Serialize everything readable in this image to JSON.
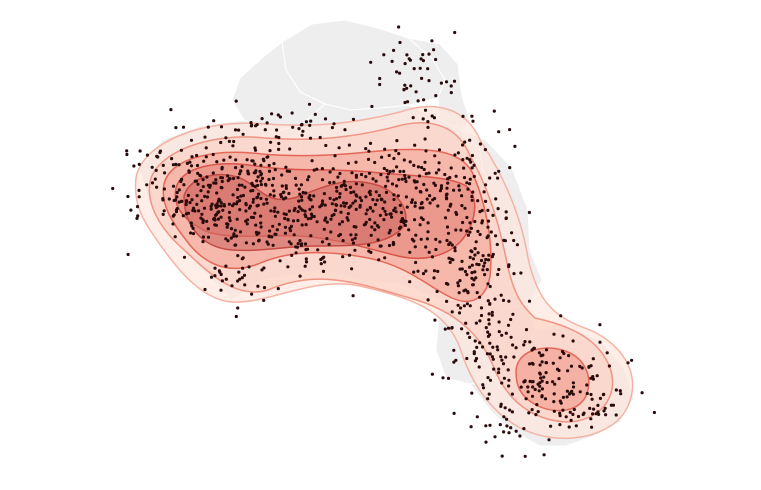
{
  "map": {
    "colors": {
      "background": "#ffffff",
      "land": "#eeeeee",
      "district_border": "#ffffff",
      "points": "#2b0c0c",
      "contour_fills": [
        "#fde3d9",
        "#fbcfc0",
        "#f3a595",
        "#e3857a",
        "#d06a64"
      ],
      "contour_strokes": [
        "#f4b3a5",
        "#ef9585",
        "#e4685a",
        "#d9544a",
        "#c44c45"
      ]
    },
    "layers": [
      "district-boundaries",
      "incident-points",
      "density-contours"
    ],
    "density_levels": 5,
    "point_marker": "small-dot"
  }
}
